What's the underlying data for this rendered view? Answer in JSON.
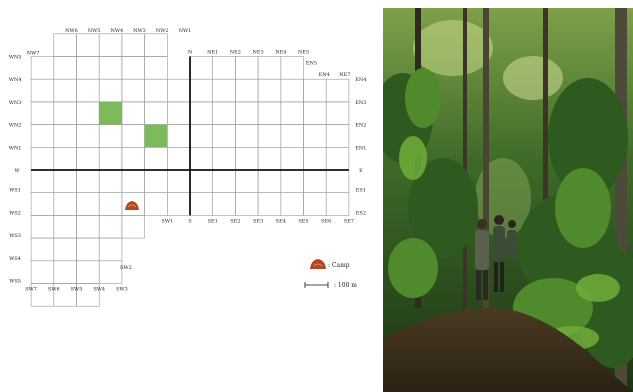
{
  "map": {
    "labels": {
      "n_top": [
        "NW6",
        "NW5",
        "NW4",
        "NW3",
        "NW2",
        "NW1"
      ],
      "n_top_left": "NW6",
      "nw7": "NW7",
      "n": "N",
      "ne_top": [
        "NE1",
        "NE2",
        "NE3",
        "NE4",
        "NE5"
      ],
      "en5_top": "EN5",
      "en4_top": "EN4",
      "ne7": "NE7",
      "wn_left": [
        "WN5",
        "WN4",
        "WN3",
        "WN2",
        "WN1"
      ],
      "w": "W",
      "ws_left": [
        "WS1",
        "WS2",
        "WS3",
        "WS4",
        "WS5"
      ],
      "en_right": [
        "EN4",
        "EN3",
        "EN2",
        "EN1"
      ],
      "e": "E",
      "es_right": [
        "ES1",
        "ES2"
      ],
      "se_bottom": [
        "SW1",
        "S",
        "SE1",
        "SE2",
        "SE3",
        "SE4",
        "SE5",
        "SE6",
        "SE7"
      ],
      "sw_bottom": [
        "SW7",
        "SW6",
        "SW5",
        "SW4",
        "SW3"
      ],
      "sw2": "SW2"
    },
    "legend": {
      "camp_label": ": Camp",
      "scale_label": ": 100 m"
    },
    "colors": {
      "grid": "#9a9a9a",
      "axis": "#111111",
      "highlight": "#7dbb5a",
      "camp": "#b5481f"
    },
    "icons": {
      "camp": "camp-mound-icon",
      "scale": "scale-bar-icon"
    }
  },
  "photo": {
    "subject": "rainforest-photo"
  }
}
